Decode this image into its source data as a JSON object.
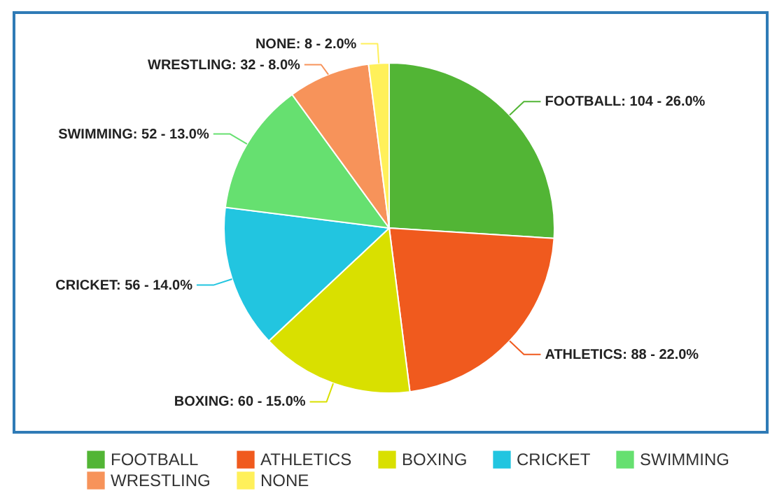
{
  "chart_data": {
    "type": "pie",
    "categories": [
      "FOOTBALL",
      "ATHLETICS",
      "BOXING",
      "CRICKET",
      "SWIMMING",
      "WRESTLING",
      "NONE"
    ],
    "values": [
      104,
      88,
      60,
      56,
      52,
      32,
      8
    ],
    "value_labels": [
      "FOOTBALL: 104 - 26.0%",
      "ATHLETICS: 88 - 22.0%",
      "BOXING: 60 - 15.0%",
      "CRICKET: 56 - 14.0%",
      "SWIMMING: 52 - 13.0%",
      "WRESTLING: 32 - 8.0%",
      "NONE: 8 - 2.0%"
    ],
    "colors": [
      "#52b535",
      "#f05a1e",
      "#d9e000",
      "#22c5e0",
      "#66e070",
      "#f7935a",
      "#fff05a"
    ],
    "legend": "bottom"
  }
}
